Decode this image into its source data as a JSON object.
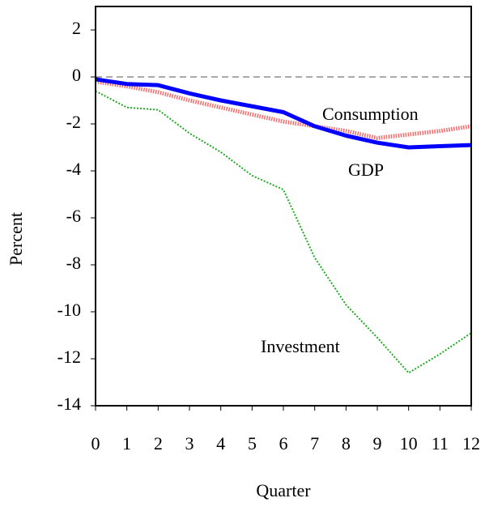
{
  "chart_data": {
    "type": "line",
    "x": [
      0,
      1,
      2,
      3,
      4,
      5,
      6,
      7,
      8,
      9,
      10,
      11,
      12
    ],
    "xlabel": "Quarter",
    "ylabel": "Percent",
    "xlim": [
      0,
      12
    ],
    "xticks": [
      0,
      1,
      2,
      3,
      4,
      5,
      6,
      7,
      8,
      9,
      10,
      11,
      12
    ],
    "ylim": [
      -14,
      3
    ],
    "yticks": [
      2,
      0,
      -2,
      -4,
      -6,
      -8,
      -10,
      -12,
      -14
    ],
    "reference_line": 0,
    "series": [
      {
        "name": "GDP",
        "color": "#0000ff",
        "style": "solid",
        "width": 5,
        "values": [
          -0.1,
          -0.3,
          -0.35,
          -0.7,
          -1.0,
          -1.25,
          -1.5,
          -2.1,
          -2.5,
          -2.8,
          -3.0,
          -2.95,
          -2.9
        ]
      },
      {
        "name": "Consumption",
        "color": "#ff6666",
        "style": "dotted",
        "width": 5,
        "values": [
          -0.2,
          -0.4,
          -0.65,
          -1.0,
          -1.3,
          -1.6,
          -1.9,
          -2.1,
          -2.3,
          -2.6,
          -2.45,
          -2.3,
          -2.1
        ]
      },
      {
        "name": "Investment",
        "color": "#22aa22",
        "style": "dotted",
        "width": 2,
        "values": [
          -0.6,
          -1.3,
          -1.4,
          -2.4,
          -3.2,
          -4.2,
          -4.8,
          -7.7,
          -9.7,
          -11.1,
          -12.6,
          -11.8,
          -10.9
        ]
      }
    ]
  }
}
